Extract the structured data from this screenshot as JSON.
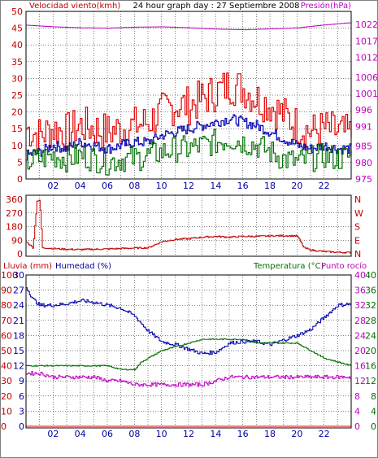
{
  "header": {
    "left_title": "Velocidad viento(kmh)",
    "center_title": "24 hour graph day : 27 Septiembre 2008",
    "right_title": "Presión(hPa)"
  },
  "colors": {
    "wind": "#e00000",
    "gust": "#e00000",
    "wind_avg": "#0000b0",
    "wind_min": "#007000",
    "pressure": "#c000c0",
    "direction": "#c00000",
    "rain": "#e00000",
    "humidity": "#0000b0",
    "temperature": "#007000",
    "dewpoint": "#c000c0",
    "axis_red": "#c00000",
    "axis_blue": "#0000a0",
    "axis_green": "#007000",
    "axis_magenta": "#c000c0",
    "grid": "#000000"
  },
  "chart_data": [
    {
      "type": "line",
      "title": "Velocidad viento(kmh)",
      "x_ticks": [
        "02",
        "04",
        "06",
        "08",
        "10",
        "12",
        "14",
        "16",
        "18",
        "20",
        "22"
      ],
      "x_range_hours": [
        0,
        24
      ],
      "y_left": {
        "label": "Velocidad viento(kmh)",
        "range": [
          0,
          50
        ],
        "ticks": [
          "0",
          "5",
          "10",
          "15",
          "20",
          "25",
          "30",
          "35",
          "40",
          "45",
          "50"
        ]
      },
      "y_right": {
        "label": "Presión(hPa)",
        "range": [
          975,
          1026
        ],
        "ticks": [
          "975",
          "980",
          "985",
          "991",
          "996",
          "1001",
          "1006",
          "1012",
          "1017",
          "1022"
        ]
      },
      "series": [
        {
          "key": "gust",
          "axis": "left",
          "hours": [
            0,
            1,
            2,
            3,
            4,
            5,
            6,
            7,
            8,
            9,
            10,
            11,
            12,
            13,
            14,
            15,
            16,
            17,
            18,
            19,
            20,
            21,
            22,
            23,
            24
          ],
          "values": [
            15,
            13,
            15,
            14,
            16,
            15,
            14,
            15,
            16,
            17,
            20,
            22,
            22,
            24,
            26,
            28,
            27,
            24,
            22,
            19,
            16,
            14,
            15,
            14,
            13
          ]
        },
        {
          "key": "wind_avg",
          "axis": "left",
          "hours": [
            0,
            1,
            2,
            3,
            4,
            5,
            6,
            7,
            8,
            9,
            10,
            11,
            12,
            13,
            14,
            15,
            16,
            17,
            18,
            19,
            20,
            21,
            22,
            23,
            24
          ],
          "values": [
            7,
            8,
            10,
            9,
            11,
            10,
            9,
            10,
            11,
            11,
            13,
            14,
            15,
            16,
            17,
            18,
            17,
            16,
            14,
            12,
            10,
            9,
            10,
            9,
            9
          ]
        },
        {
          "key": "wind_min",
          "axis": "left",
          "hours": [
            0,
            1,
            2,
            3,
            4,
            5,
            6,
            7,
            8,
            9,
            10,
            11,
            12,
            13,
            14,
            15,
            16,
            17,
            18,
            19,
            20,
            21,
            22,
            23,
            24
          ],
          "values": [
            5,
            6,
            7,
            6,
            7,
            6,
            5,
            6,
            6,
            7,
            8,
            9,
            9,
            10,
            11,
            12,
            11,
            10,
            8,
            6,
            5,
            6,
            7,
            6,
            7
          ]
        },
        {
          "key": "pressure",
          "axis": "right",
          "hours": [
            0,
            2,
            4,
            6,
            8,
            10,
            12,
            14,
            16,
            18,
            20,
            22,
            24
          ],
          "values": [
            1021.8,
            1021.3,
            1021.0,
            1020.9,
            1021.2,
            1021.3,
            1021.0,
            1020.6,
            1020.4,
            1020.7,
            1021.0,
            1021.9,
            1022.6
          ]
        }
      ]
    },
    {
      "type": "scatter",
      "title": "Wind direction",
      "x_ticks": [
        "02",
        "04",
        "06",
        "08",
        "10",
        "12",
        "14",
        "16",
        "18",
        "20",
        "22"
      ],
      "y_left": {
        "range": [
          0,
          360
        ],
        "ticks": [
          "0",
          "90",
          "180",
          "270",
          "360"
        ]
      },
      "y_right": {
        "labels": [
          "N",
          "E",
          "S",
          "W",
          "N"
        ]
      },
      "series": [
        {
          "key": "direction",
          "hours": [
            0,
            0.5,
            0.8,
            1.0,
            1.2,
            2,
            3,
            4,
            5,
            6,
            7,
            8,
            9,
            10,
            11,
            12,
            13,
            14,
            15,
            16,
            17,
            18,
            19,
            20,
            20.5,
            21,
            22,
            23,
            24
          ],
          "values": [
            80,
            40,
            350,
            350,
            40,
            35,
            30,
            28,
            30,
            32,
            35,
            38,
            40,
            80,
            95,
            100,
            110,
            115,
            110,
            115,
            115,
            118,
            120,
            118,
            40,
            25,
            15,
            10,
            8
          ]
        }
      ]
    },
    {
      "type": "line",
      "title": "",
      "x_ticks": [
        "02",
        "04",
        "06",
        "08",
        "10",
        "12",
        "14",
        "16",
        "18",
        "20",
        "22"
      ],
      "y_left_outer": {
        "label": "Lluvia (mm)",
        "range": [
          0,
          100
        ],
        "ticks": [
          "0",
          "10",
          "20",
          "30",
          "40",
          "50",
          "60",
          "70",
          "80",
          "90",
          "100"
        ]
      },
      "y_left_inner": {
        "label": "Humedad (%)",
        "range": [
          0,
          30
        ],
        "ticks": [
          "0",
          "3",
          "6",
          "9",
          "12",
          "15",
          "18",
          "21",
          "24",
          "27",
          "30"
        ]
      },
      "y_right_outer": {
        "label": "Temperatura (°C)",
        "range": [
          0,
          40
        ],
        "ticks": [
          "0",
          "4",
          "8",
          "12",
          "16",
          "20",
          "24",
          "28",
          "32",
          "36",
          "40"
        ]
      },
      "y_right_inner": {
        "label": "Punto rocío",
        "range": [
          0,
          40
        ],
        "ticks": [
          "0",
          "4",
          "8",
          "12",
          "16",
          "20",
          "24",
          "28",
          "32",
          "36",
          "40"
        ]
      },
      "series": [
        {
          "key": "rain",
          "axis": "left_outer",
          "hours": [
            0,
            24
          ],
          "values": [
            0,
            0
          ]
        },
        {
          "key": "humidity",
          "axis": "left_outer",
          "hours": [
            0,
            0.5,
            1,
            2,
            3,
            4,
            5,
            6,
            7,
            8,
            9,
            10,
            11,
            12,
            13,
            14,
            15,
            16,
            17,
            18,
            19,
            20,
            21,
            22,
            23,
            24
          ],
          "values": [
            92,
            84,
            80,
            80,
            81,
            83,
            82,
            80,
            78,
            73,
            63,
            56,
            54,
            51,
            48,
            49,
            55,
            56,
            56,
            54,
            57,
            60,
            64,
            72,
            80,
            81
          ]
        },
        {
          "key": "temperature",
          "axis": "right_outer",
          "hours": [
            0,
            1,
            2,
            3,
            4,
            5,
            6,
            7,
            8,
            8.5,
            9,
            10,
            11,
            12,
            13,
            14,
            15,
            16,
            17,
            18,
            19,
            20,
            21,
            22,
            23,
            24
          ],
          "values": [
            16,
            16,
            16,
            16,
            16,
            16,
            16,
            15,
            15,
            17,
            18,
            20,
            21,
            22,
            23,
            23,
            23,
            23,
            22,
            22,
            22,
            22,
            20,
            18,
            17,
            16
          ]
        },
        {
          "key": "dewpoint",
          "axis": "right_outer",
          "hours": [
            0,
            1,
            2,
            3,
            4,
            5,
            6,
            7,
            8,
            9,
            10,
            11,
            12,
            13,
            14,
            15,
            16,
            17,
            18,
            19,
            20,
            21,
            22,
            23,
            24
          ],
          "values": [
            14,
            14,
            13,
            13,
            13,
            13,
            12,
            12,
            11,
            11,
            11,
            11,
            11,
            11,
            12,
            13,
            13,
            13,
            13,
            13,
            13,
            13,
            13,
            13,
            13
          ]
        }
      ]
    }
  ],
  "legend": {
    "rain_label": "Lluvia (mm)",
    "humidity_label": "Humedad (%)",
    "temperature_label": "Temperatura (°C)",
    "dewpoint_label": "Punto rocío"
  }
}
